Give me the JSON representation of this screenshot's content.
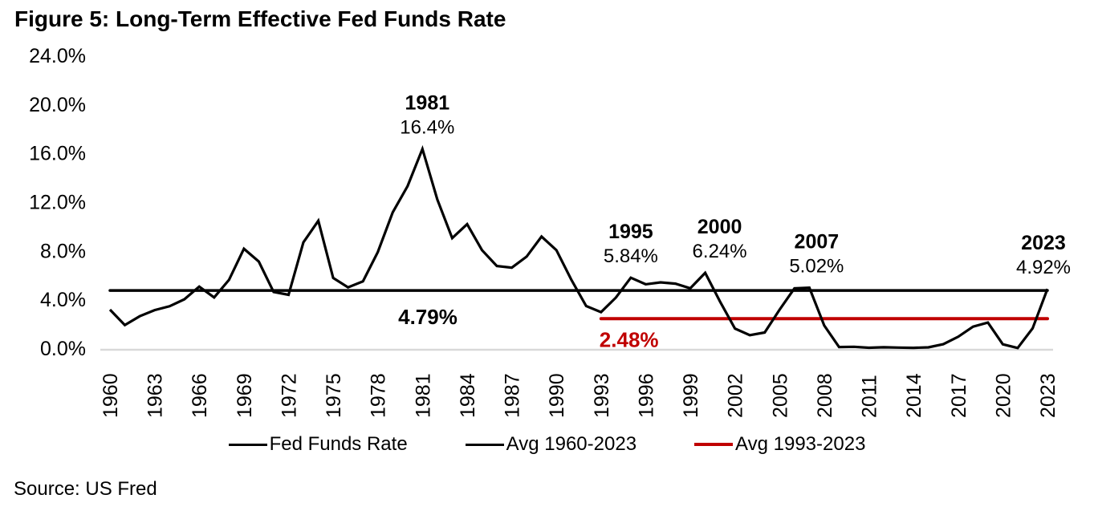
{
  "figure": {
    "title": "Figure 5: Long-Term Effective Fed Funds Rate",
    "source": "Source: US Fred"
  },
  "legend": {
    "items": [
      {
        "label": "Fed Funds Rate",
        "color": "#000000",
        "thickness": 3
      },
      {
        "label": "Avg 1960-2023",
        "color": "#000000",
        "thickness": 3
      },
      {
        "label": "Avg 1993-2023",
        "color": "#C00000",
        "thickness": 4
      }
    ]
  },
  "chart_data": {
    "type": "line",
    "title": "Figure 5: Long-Term Effective Fed Funds Rate",
    "xlabel": "",
    "ylabel": "",
    "x_range": [
      1960,
      2023
    ],
    "x_tick_step": 3,
    "x_tick_labels": [
      "1960",
      "1963",
      "1966",
      "1969",
      "1972",
      "1975",
      "1978",
      "1981",
      "1984",
      "1987",
      "1990",
      "1993",
      "1996",
      "1999",
      "2002",
      "2005",
      "2008",
      "2011",
      "2014",
      "2017",
      "2020",
      "2023"
    ],
    "y_axis": {
      "min": 0,
      "max": 24,
      "tick_step": 4,
      "tick_labels": [
        "24.0%",
        "20.0%",
        "16.0%",
        "12.0%",
        "8.0%",
        "4.0%",
        "0.0%"
      ]
    },
    "grid": false,
    "legend_position": "bottom",
    "baseline_color": "#D9D9D9",
    "series": [
      {
        "name": "Fed Funds Rate",
        "kind": "line",
        "color": "#000000",
        "x_start": 1960,
        "values": [
          3.22,
          1.96,
          2.68,
          3.18,
          3.5,
          4.07,
          5.11,
          4.22,
          5.66,
          8.21,
          7.17,
          4.67,
          4.44,
          8.74,
          10.51,
          5.82,
          5.05,
          5.54,
          7.94,
          11.2,
          13.35,
          16.39,
          12.24,
          9.09,
          10.23,
          8.1,
          6.8,
          6.66,
          7.57,
          9.21,
          8.1,
          5.69,
          3.52,
          3.02,
          4.21,
          5.84,
          5.3,
          5.46,
          5.35,
          4.97,
          6.24,
          3.88,
          1.67,
          1.13,
          1.35,
          3.22,
          4.97,
          5.02,
          1.92,
          0.16,
          0.18,
          0.1,
          0.14,
          0.11,
          0.09,
          0.13,
          0.39,
          1.0,
          1.83,
          2.16,
          0.38,
          0.08,
          1.68,
          4.92
        ]
      },
      {
        "name": "Avg 1960-2023",
        "kind": "hline",
        "color": "#000000",
        "value": 4.79,
        "span": [
          1960,
          2023
        ],
        "label": "4.79%"
      },
      {
        "name": "Avg 1993-2023",
        "kind": "hline",
        "color": "#C00000",
        "value": 2.48,
        "span": [
          1993,
          2023
        ],
        "label": "2.48%"
      }
    ],
    "annotations": [
      {
        "year_label": "1981",
        "value_label": "16.4%",
        "year": 1981,
        "value": 16.39,
        "dx": 6
      },
      {
        "year_label": "1995",
        "value_label": "5.84%",
        "year": 1995,
        "value": 5.84,
        "dx": 0
      },
      {
        "year_label": "2000",
        "value_label": "6.24%",
        "year": 2000,
        "value": 6.24,
        "dx": 18
      },
      {
        "year_label": "2007",
        "value_label": "5.02%",
        "year": 2007,
        "value": 5.02,
        "dx": 9
      },
      {
        "year_label": "2023",
        "value_label": "4.92%",
        "year": 2023,
        "value": 4.92,
        "dx": -5
      }
    ]
  }
}
